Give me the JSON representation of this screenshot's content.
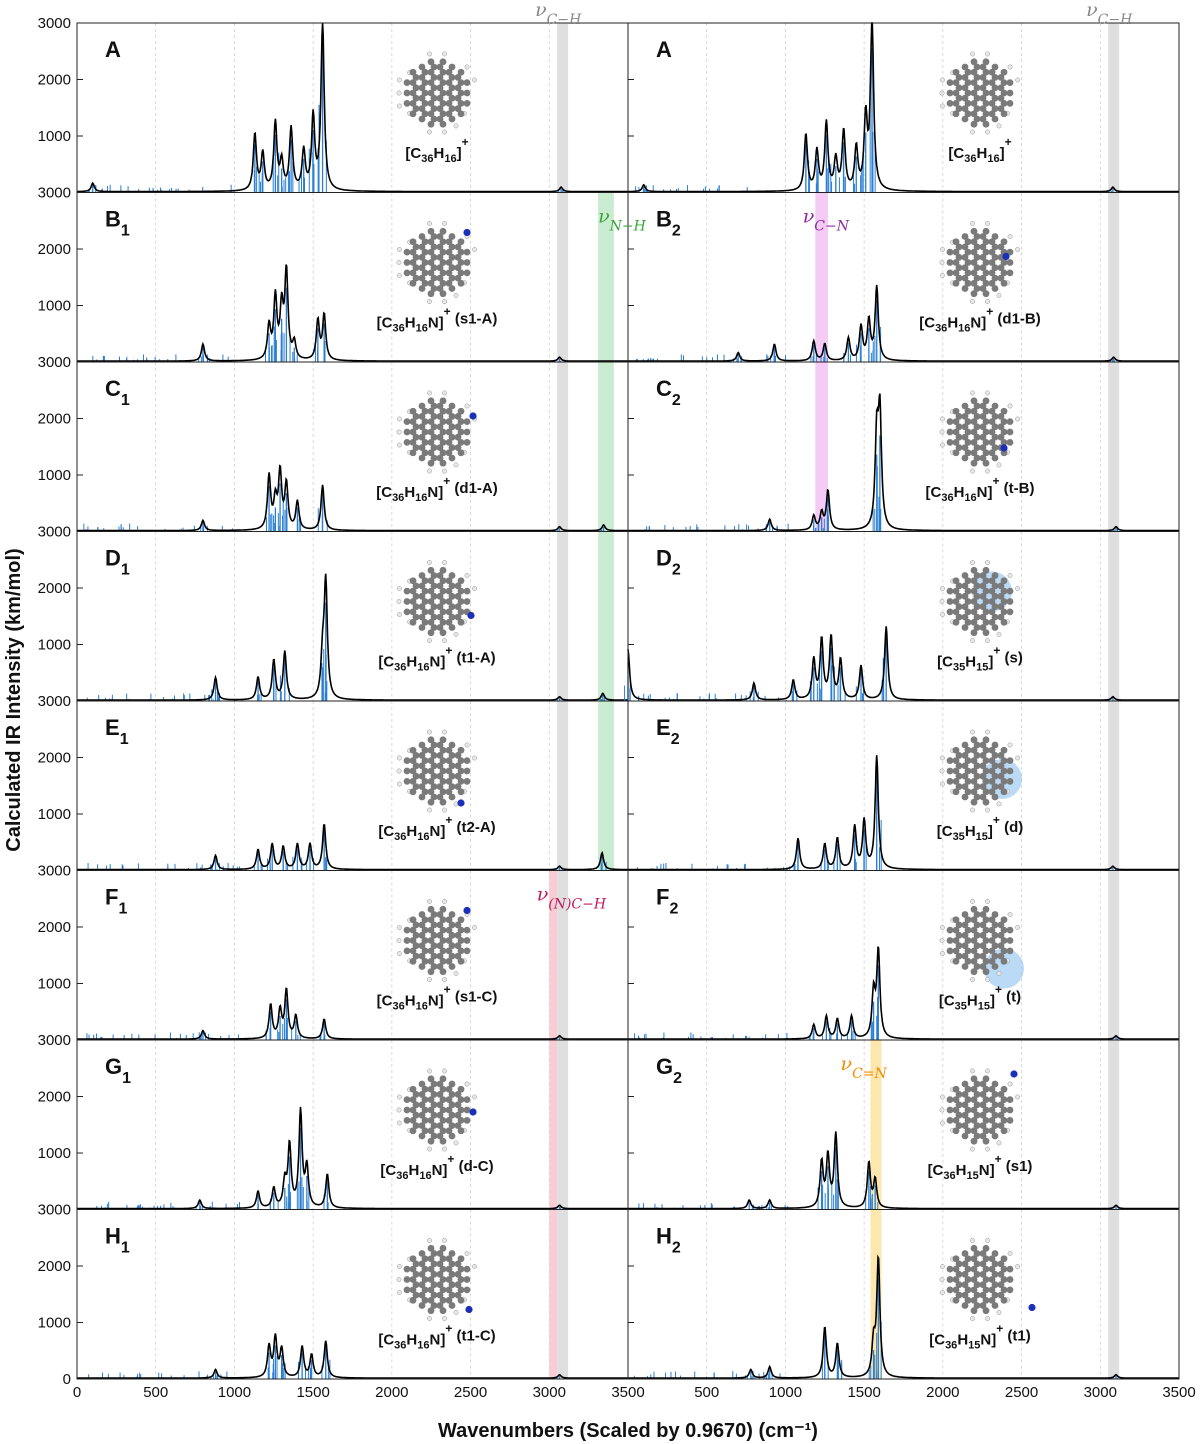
{
  "figure": {
    "ylabel": "Calculated IR Intensity (km/mol)",
    "xlabel": "Wavenumbers (Scaled by 0.9670) (cm⁻¹)"
  },
  "colors": {
    "stick": "#2b7fd3",
    "envelope": "#000000",
    "band_CH": "#d9d9d9",
    "band_NH": "#bfe8c8",
    "band_CN": "#f1c2f2",
    "band_NCH": "#f7c4cd",
    "band_CeqN": "#fde3a0",
    "label_CH": "#888888",
    "label_NH": "#3aa63a",
    "label_CN": "#8a2b9e",
    "label_NCH": "#c2185b",
    "label_CeqN": "#f08c00",
    "atom_C": "#7a7a7a",
    "atom_N": "#1c2fb8",
    "atom_H": "#e8e8e8",
    "highlight": "#8ec1ef"
  },
  "chart_data": {
    "type": "line",
    "x_range": [
      0,
      3500
    ],
    "y_range": [
      0,
      3000
    ],
    "xticks": [
      "0",
      "500",
      "1000",
      "1500",
      "2000",
      "2500",
      "3000",
      "3500"
    ],
    "yticks": [
      "1000",
      "2000",
      "3000"
    ],
    "panels": [
      {
        "row": 0,
        "col": 0,
        "letter": "A",
        "sub": "",
        "formula": "C36H16",
        "suffix": "",
        "peaks": [
          [
            100,
            150
          ],
          [
            1130,
            1000
          ],
          [
            1180,
            650
          ],
          [
            1260,
            1200
          ],
          [
            1300,
            500
          ],
          [
            1360,
            1100
          ],
          [
            1440,
            700
          ],
          [
            1500,
            1300
          ],
          [
            1560,
            3000
          ],
          [
            3075,
            80
          ]
        ],
        "bands": [
          {
            "key": "CH",
            "x": [
              3050,
              3120
            ]
          }
        ],
        "band_labels": [
          {
            "text": "ν",
            "sub": "C−H",
            "color": "label_CH",
            "x": 2910,
            "pos": "top"
          }
        ]
      },
      {
        "row": 0,
        "col": 1,
        "letter": "A",
        "sub": "",
        "formula": "C36H16",
        "suffix": "",
        "peaks": [
          [
            100,
            120
          ],
          [
            1130,
            1000
          ],
          [
            1200,
            700
          ],
          [
            1260,
            1200
          ],
          [
            1320,
            550
          ],
          [
            1370,
            1050
          ],
          [
            1450,
            750
          ],
          [
            1510,
            1250
          ],
          [
            1550,
            3000
          ],
          [
            3080,
            80
          ]
        ],
        "bands": [
          {
            "key": "CH",
            "x": [
              3050,
              3120
            ]
          }
        ],
        "band_labels": [
          {
            "text": "ν",
            "sub": "C−H",
            "color": "label_CH",
            "x": 2910,
            "pos": "top"
          }
        ]
      },
      {
        "row": 1,
        "col": 0,
        "letter": "B",
        "sub": "1",
        "formula": "C36H16N",
        "suffix": " (s1-A)",
        "peaks": [
          [
            800,
            300
          ],
          [
            1220,
            600
          ],
          [
            1260,
            1100
          ],
          [
            1300,
            900
          ],
          [
            1330,
            1550
          ],
          [
            1380,
            300
          ],
          [
            1530,
            700
          ],
          [
            1570,
            800
          ],
          [
            3065,
            70
          ]
        ],
        "bands": [
          {
            "key": "CH",
            "x": [
              3050,
              3120
            ]
          },
          {
            "key": "NH",
            "x": [
              3310,
              3410
            ]
          }
        ],
        "band_labels": [
          {
            "text": "ν",
            "sub": "N−H",
            "color": "label_NH",
            "x": 3310,
            "pos": "in"
          }
        ]
      },
      {
        "row": 1,
        "col": 1,
        "letter": "B",
        "sub": "2",
        "formula": "C36H16N",
        "suffix": " (d1-B)",
        "peaks": [
          [
            700,
            150
          ],
          [
            930,
            300
          ],
          [
            1180,
            350
          ],
          [
            1250,
            300
          ],
          [
            1400,
            400
          ],
          [
            1480,
            600
          ],
          [
            1530,
            700
          ],
          [
            1580,
            1300
          ],
          [
            3085,
            70
          ]
        ],
        "bands": [
          {
            "key": "CN",
            "x": [
              1190,
              1270
            ]
          },
          {
            "key": "CH",
            "x": [
              3050,
              3120
            ]
          }
        ],
        "band_labels": [
          {
            "text": "ν",
            "sub": "C−N",
            "color": "label_CN",
            "x": 1110,
            "pos": "in"
          }
        ]
      },
      {
        "row": 2,
        "col": 0,
        "letter": "C",
        "sub": "1",
        "formula": "C36H16N",
        "suffix": " (d1-A)",
        "peaks": [
          [
            800,
            180
          ],
          [
            1220,
            950
          ],
          [
            1260,
            500
          ],
          [
            1290,
            1000
          ],
          [
            1330,
            800
          ],
          [
            1400,
            500
          ],
          [
            1560,
            800
          ],
          [
            3065,
            70
          ],
          [
            3345,
            100
          ]
        ],
        "bands": [
          {
            "key": "CH",
            "x": [
              3050,
              3120
            ]
          },
          {
            "key": "NH",
            "x": [
              3310,
              3410
            ]
          }
        ],
        "band_labels": []
      },
      {
        "row": 2,
        "col": 1,
        "letter": "C",
        "sub": "2",
        "formula": "C36H16N",
        "suffix": " (t-B)",
        "peaks": [
          [
            900,
            200
          ],
          [
            1180,
            250
          ],
          [
            1230,
            300
          ],
          [
            1270,
            700
          ],
          [
            1580,
            1600
          ],
          [
            1600,
            2000
          ],
          [
            3100,
            70
          ]
        ],
        "bands": [
          {
            "key": "CN",
            "x": [
              1190,
              1270
            ]
          },
          {
            "key": "CH",
            "x": [
              3050,
              3120
            ]
          }
        ],
        "band_labels": []
      },
      {
        "row": 3,
        "col": 0,
        "letter": "D",
        "sub": "1",
        "formula": "C36H16N",
        "suffix": " (t1-A)",
        "peaks": [
          [
            880,
            400
          ],
          [
            1150,
            400
          ],
          [
            1250,
            700
          ],
          [
            1320,
            850
          ],
          [
            1560,
            700
          ],
          [
            1580,
            2050
          ],
          [
            3065,
            60
          ],
          [
            3340,
            120
          ]
        ],
        "bands": [
          {
            "key": "CH",
            "x": [
              3050,
              3120
            ]
          },
          {
            "key": "NH",
            "x": [
              3310,
              3410
            ]
          }
        ],
        "band_labels": []
      },
      {
        "row": 3,
        "col": 1,
        "letter": "D",
        "sub": "2",
        "formula": "C35H15",
        "suffix": " (s)",
        "peaks": [
          [
            0,
            900
          ],
          [
            800,
            300
          ],
          [
            1050,
            350
          ],
          [
            1180,
            700
          ],
          [
            1230,
            1050
          ],
          [
            1290,
            1100
          ],
          [
            1350,
            700
          ],
          [
            1480,
            600
          ],
          [
            1640,
            1300
          ],
          [
            3080,
            60
          ]
        ],
        "bands": [
          {
            "key": "CH",
            "x": [
              3050,
              3120
            ]
          }
        ],
        "band_labels": [],
        "glow": "s"
      },
      {
        "row": 4,
        "col": 0,
        "letter": "E",
        "sub": "1",
        "formula": "C36H16N",
        "suffix": " (t2-A)",
        "peaks": [
          [
            880,
            250
          ],
          [
            1150,
            350
          ],
          [
            1240,
            450
          ],
          [
            1310,
            400
          ],
          [
            1400,
            450
          ],
          [
            1480,
            450
          ],
          [
            1570,
            800
          ],
          [
            3065,
            60
          ],
          [
            3335,
            300
          ]
        ],
        "bands": [
          {
            "key": "CH",
            "x": [
              3050,
              3120
            ]
          },
          {
            "key": "NH",
            "x": [
              3310,
              3410
            ]
          }
        ],
        "band_labels": []
      },
      {
        "row": 4,
        "col": 1,
        "letter": "E",
        "sub": "2",
        "formula": "C35H15",
        "suffix": " (d)",
        "peaks": [
          [
            1080,
            550
          ],
          [
            1250,
            450
          ],
          [
            1330,
            550
          ],
          [
            1440,
            750
          ],
          [
            1500,
            850
          ],
          [
            1580,
            2000
          ],
          [
            3080,
            60
          ]
        ],
        "bands": [
          {
            "key": "CH",
            "x": [
              3050,
              3120
            ]
          }
        ],
        "band_labels": [],
        "glow": "d"
      },
      {
        "row": 5,
        "col": 0,
        "letter": "F",
        "sub": "1",
        "formula": "C36H16N",
        "suffix": " (s1-C)",
        "peaks": [
          [
            800,
            150
          ],
          [
            1230,
            600
          ],
          [
            1290,
            500
          ],
          [
            1330,
            850
          ],
          [
            1390,
            400
          ],
          [
            1570,
            350
          ],
          [
            3065,
            60
          ]
        ],
        "bands": [
          {
            "key": "NCH",
            "x": [
              3000,
              3050
            ]
          },
          {
            "key": "CH",
            "x": [
              3050,
              3120
            ]
          }
        ],
        "band_labels": [
          {
            "text": "ν",
            "sub": "(N)C−H",
            "color": "label_NCH",
            "x": 2920,
            "pos": "in"
          }
        ]
      },
      {
        "row": 5,
        "col": 1,
        "letter": "F",
        "sub": "2",
        "formula": "C35H15",
        "suffix": " (t)",
        "peaks": [
          [
            1180,
            250
          ],
          [
            1260,
            400
          ],
          [
            1330,
            350
          ],
          [
            1420,
            400
          ],
          [
            1560,
            800
          ],
          [
            1590,
            1550
          ],
          [
            3100,
            60
          ]
        ],
        "bands": [
          {
            "key": "CH",
            "x": [
              3050,
              3120
            ]
          }
        ],
        "band_labels": [],
        "glow": "t"
      },
      {
        "row": 6,
        "col": 0,
        "letter": "G",
        "sub": "1",
        "formula": "C36H16N",
        "suffix": " (d-C)",
        "peaks": [
          [
            780,
            150
          ],
          [
            1150,
            300
          ],
          [
            1250,
            350
          ],
          [
            1320,
            450
          ],
          [
            1350,
            1100
          ],
          [
            1420,
            1700
          ],
          [
            1460,
            700
          ],
          [
            1590,
            600
          ],
          [
            3065,
            60
          ]
        ],
        "bands": [
          {
            "key": "NCH",
            "x": [
              3000,
              3050
            ]
          },
          {
            "key": "CH",
            "x": [
              3050,
              3120
            ]
          }
        ],
        "band_labels": []
      },
      {
        "row": 6,
        "col": 1,
        "letter": "G",
        "sub": "2",
        "formula": "C36H15N",
        "suffix": " (s1)",
        "peaks": [
          [
            770,
            150
          ],
          [
            900,
            150
          ],
          [
            1230,
            800
          ],
          [
            1270,
            900
          ],
          [
            1320,
            1300
          ],
          [
            1530,
            800
          ],
          [
            1570,
            500
          ],
          [
            3100,
            60
          ]
        ],
        "bands": [
          {
            "key": "CeqN",
            "x": [
              1540,
              1610
            ]
          },
          {
            "key": "CH",
            "x": [
              3050,
              3120
            ]
          }
        ],
        "band_labels": [
          {
            "text": "ν",
            "sub": "C=N",
            "color": "label_CeqN",
            "x": 1350,
            "pos": "in"
          }
        ]
      },
      {
        "row": 7,
        "col": 0,
        "letter": "H",
        "sub": "1",
        "formula": "C36H16N",
        "suffix": " (t1-C)",
        "peaks": [
          [
            880,
            150
          ],
          [
            1220,
            550
          ],
          [
            1260,
            700
          ],
          [
            1300,
            500
          ],
          [
            1430,
            550
          ],
          [
            1490,
            400
          ],
          [
            1580,
            650
          ],
          [
            3065,
            60
          ]
        ],
        "bands": [
          {
            "key": "NCH",
            "x": [
              3000,
              3050
            ]
          },
          {
            "key": "CH",
            "x": [
              3050,
              3120
            ]
          }
        ],
        "band_labels": []
      },
      {
        "row": 7,
        "col": 1,
        "letter": "H",
        "sub": "2",
        "formula": "C36H15N",
        "suffix": " (t1)",
        "peaks": [
          [
            780,
            150
          ],
          [
            900,
            200
          ],
          [
            1250,
            900
          ],
          [
            1330,
            600
          ],
          [
            1560,
            600
          ],
          [
            1590,
            2100
          ],
          [
            3100,
            60
          ]
        ],
        "bands": [
          {
            "key": "CeqN",
            "x": [
              1540,
              1610
            ]
          },
          {
            "key": "CH",
            "x": [
              3050,
              3120
            ]
          }
        ],
        "band_labels": []
      }
    ]
  }
}
